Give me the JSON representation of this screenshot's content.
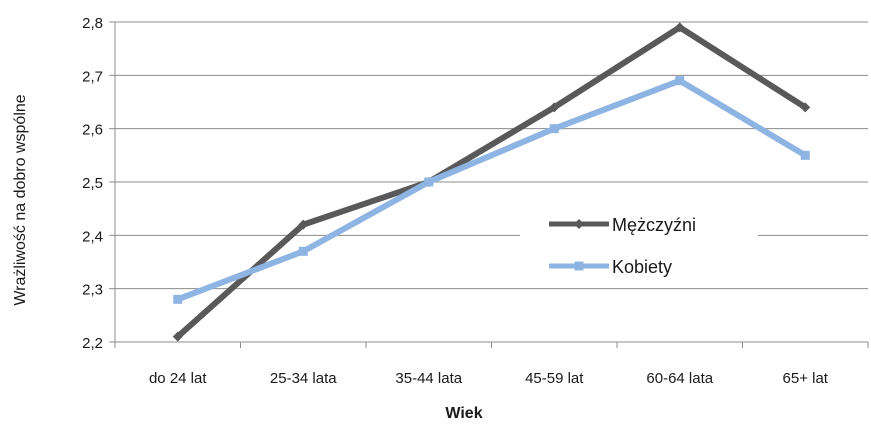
{
  "chart_data": {
    "type": "line",
    "title": "",
    "xlabel": "Wiek",
    "ylabel": "Wrażliwość na dobro wspólne",
    "categories": [
      "do 24 lat",
      "25-34 lata",
      "35-44 lata",
      "45-59 lat",
      "60-64 lata",
      "65+ lat"
    ],
    "ylim": [
      2.2,
      2.8
    ],
    "yticks": [
      2.2,
      2.3,
      2.4,
      2.5,
      2.6,
      2.7,
      2.8
    ],
    "ytick_labels": [
      "2,2",
      "2,3",
      "2,4",
      "2,5",
      "2,6",
      "2,7",
      "2,8"
    ],
    "grid": true,
    "legend_position": "right",
    "series": [
      {
        "name": "Mężczyźni",
        "color": "#595959",
        "marker": "diamond",
        "values": [
          2.21,
          2.42,
          2.5,
          2.64,
          2.79,
          2.64
        ]
      },
      {
        "name": "Kobiety",
        "color": "#8EB4E3",
        "marker": "square",
        "values": [
          2.28,
          2.37,
          2.5,
          2.6,
          2.69,
          2.55
        ]
      }
    ]
  }
}
